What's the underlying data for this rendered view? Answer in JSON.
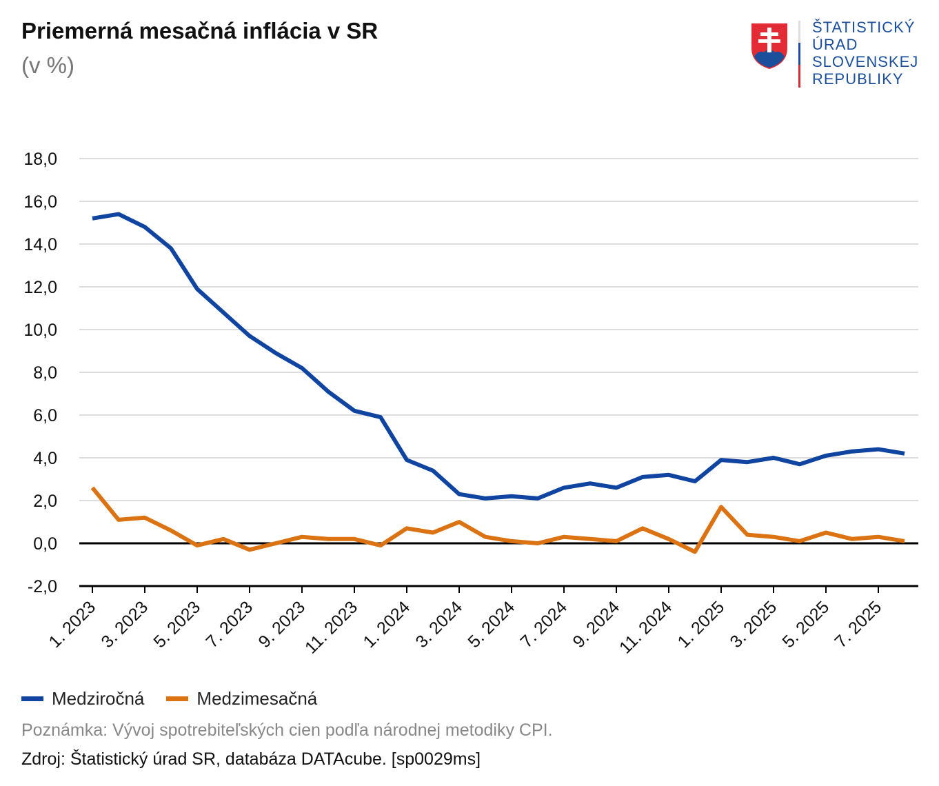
{
  "title": "Priemerná mesačná inflácia v SR",
  "subtitle": "(v %)",
  "logo": {
    "lines": [
      "ŠTATISTICKÝ",
      "ÚRAD",
      "SLOVENSKEJ",
      "REPUBLIKY"
    ]
  },
  "note": "Poznámka: Vývoj spotrebiteľských cien podľa národnej metodiky CPI.",
  "source": "Zdroj: Štatistický úrad SR, databáza DATAcube.  [sp0029ms]",
  "chart_data": {
    "type": "line",
    "title": "Priemerná mesačná inflácia v SR",
    "ylabel": "(v %)",
    "ylim": [
      -2,
      18
    ],
    "yticks": [
      "18,0",
      "16,0",
      "14,0",
      "12,0",
      "10,0",
      "8,0",
      "6,0",
      "4,0",
      "2,0",
      "0,0",
      "-2,0"
    ],
    "grid": true,
    "legend_position": "bottom-left",
    "x": [
      "1. 2023",
      "2. 2023",
      "3. 2023",
      "4. 2023",
      "5. 2023",
      "6. 2023",
      "7. 2023",
      "8. 2023",
      "9. 2023",
      "10. 2023",
      "11. 2023",
      "12. 2023",
      "1. 2024",
      "2. 2024",
      "3. 2024",
      "4. 2024",
      "5. 2024",
      "6. 2024",
      "7. 2024",
      "8. 2024",
      "9. 2024",
      "10. 2024",
      "11. 2024",
      "12. 2024",
      "1. 2025",
      "2. 2025",
      "3. 2025",
      "4. 2025",
      "5. 2025",
      "6. 2025",
      "7. 2025",
      "8. 2025"
    ],
    "xtick_labels": [
      "1. 2023",
      "3. 2023",
      "5. 2023",
      "7. 2023",
      "9. 2023",
      "11. 2023",
      "1. 2024",
      "3. 2024",
      "5. 2024",
      "7. 2024",
      "9. 2024",
      "11. 2024",
      "1. 2025",
      "3. 2025",
      "5. 2025",
      "7. 2025"
    ],
    "series": [
      {
        "name": "Medziročná",
        "color": "#0f44a0",
        "values": [
          15.2,
          15.4,
          14.8,
          13.8,
          11.9,
          10.8,
          9.7,
          8.9,
          8.2,
          7.1,
          6.2,
          5.9,
          3.9,
          3.4,
          2.3,
          2.1,
          2.2,
          2.1,
          2.6,
          2.8,
          2.6,
          3.1,
          3.2,
          2.9,
          3.9,
          3.8,
          4.0,
          3.7,
          4.1,
          4.3,
          4.4,
          4.2
        ]
      },
      {
        "name": "Medzimesačná",
        "color": "#db7313",
        "values": [
          2.6,
          1.1,
          1.2,
          0.6,
          -0.1,
          0.2,
          -0.3,
          0.0,
          0.3,
          0.2,
          0.2,
          -0.1,
          0.7,
          0.5,
          1.0,
          0.3,
          0.1,
          0.0,
          0.3,
          0.2,
          0.1,
          0.7,
          0.2,
          -0.4,
          1.7,
          0.4,
          0.3,
          0.1,
          0.5,
          0.2,
          0.3,
          0.1
        ]
      }
    ]
  }
}
